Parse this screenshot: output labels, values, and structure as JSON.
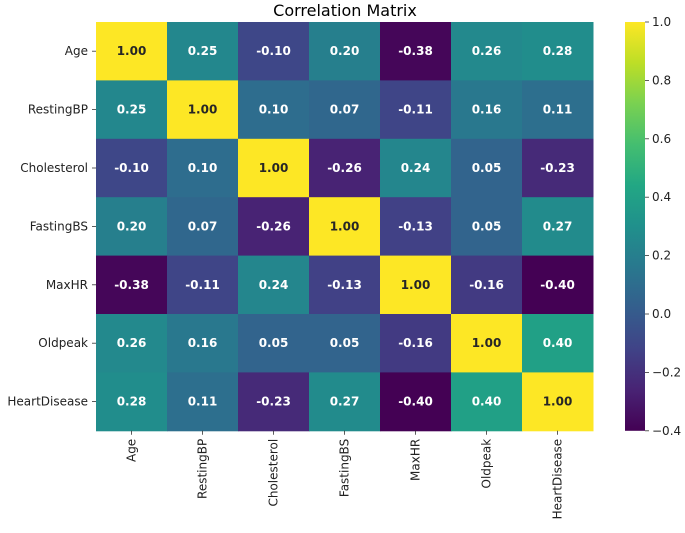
{
  "chart_data": {
    "type": "heatmap",
    "title": "Correlation Matrix",
    "row_labels": [
      "Age",
      "RestingBP",
      "Cholesterol",
      "FastingBS",
      "MaxHR",
      "Oldpeak",
      "HeartDisease"
    ],
    "col_labels": [
      "Age",
      "RestingBP",
      "Cholesterol",
      "FastingBS",
      "MaxHR",
      "Oldpeak",
      "HeartDisease"
    ],
    "values": [
      [
        1.0,
        0.25,
        -0.1,
        0.2,
        -0.38,
        0.26,
        0.28
      ],
      [
        0.25,
        1.0,
        0.1,
        0.07,
        -0.11,
        0.16,
        0.11
      ],
      [
        -0.1,
        0.1,
        1.0,
        -0.26,
        0.24,
        0.05,
        -0.23
      ],
      [
        0.2,
        0.07,
        -0.26,
        1.0,
        -0.13,
        0.05,
        0.27
      ],
      [
        -0.38,
        -0.11,
        0.24,
        -0.13,
        1.0,
        -0.16,
        -0.4
      ],
      [
        0.26,
        0.16,
        0.05,
        0.05,
        -0.16,
        1.0,
        0.4
      ],
      [
        0.28,
        0.11,
        -0.23,
        0.27,
        -0.4,
        0.4,
        1.0
      ]
    ],
    "annotation_format": "0.00",
    "colormap": "viridis",
    "colorbar": {
      "range": [
        -0.4,
        1.0
      ],
      "ticks": [
        -0.4,
        -0.2,
        0.0,
        0.2,
        0.4,
        0.6,
        0.8,
        1.0
      ],
      "tick_labels": [
        "−0.4",
        "−0.2",
        "0.0",
        "0.2",
        "0.4",
        "0.6",
        "0.8",
        "1.0"
      ]
    },
    "grid": false
  }
}
